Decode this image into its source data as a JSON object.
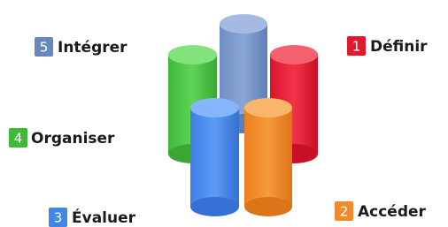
{
  "items": [
    {
      "number": "1",
      "label": "Définir"
    },
    {
      "number": "2",
      "label": "Accéder"
    },
    {
      "number": "3",
      "label": "Évaluer"
    },
    {
      "number": "4",
      "label": "Organiser"
    },
    {
      "number": "5",
      "label": "Intégrer"
    }
  ]
}
